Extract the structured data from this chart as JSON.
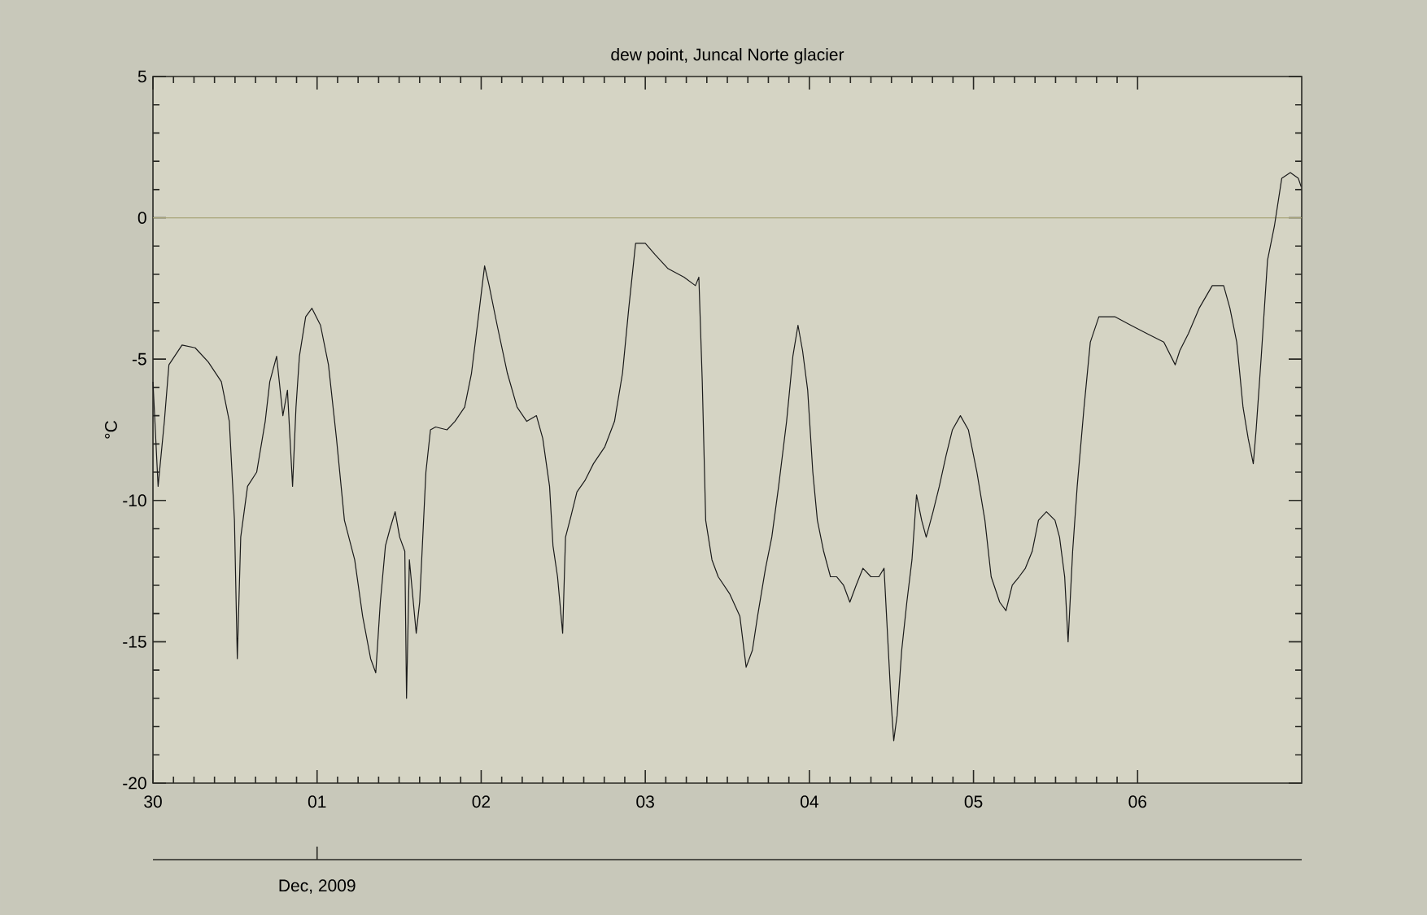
{
  "chart_data": {
    "type": "line",
    "title": "dew point, Juncal Norte glacier",
    "ylabel": "°C",
    "xlim": [
      "2009-11-30",
      "2009-12-07"
    ],
    "xticks": [
      {
        "value": "2009-11-30",
        "label": "30"
      },
      {
        "value": "2009-12-01",
        "label": "01"
      },
      {
        "value": "2009-12-02",
        "label": "02"
      },
      {
        "value": "2009-12-03",
        "label": "03"
      },
      {
        "value": "2009-12-04",
        "label": "04"
      },
      {
        "value": "2009-12-05",
        "label": "05"
      },
      {
        "value": "2009-12-06",
        "label": "06"
      }
    ],
    "ylim": [
      -20,
      5
    ],
    "yticks": [
      -20,
      -15,
      -10,
      -5,
      0,
      5
    ],
    "annotations": [
      "Dec, 2009"
    ],
    "ref_lines": [
      {
        "axis": "y",
        "value": 0,
        "color": "#a8a478"
      }
    ],
    "line_style": "solid",
    "series": [
      {
        "color": "#1a1a1a",
        "x": [
          "2009-11-30T00:00",
          "2009-11-30T00:45",
          "2009-11-30T01:40",
          "2009-11-30T02:20",
          "2009-11-30T04:15",
          "2009-11-30T06:10",
          "2009-11-30T08:05",
          "2009-11-30T10:00",
          "2009-11-30T11:10",
          "2009-11-30T11:55",
          "2009-11-30T12:20",
          "2009-11-30T12:50",
          "2009-11-30T13:50",
          "2009-11-30T15:10",
          "2009-11-30T16:25",
          "2009-11-30T17:05",
          "2009-11-30T18:05",
          "2009-11-30T19:00",
          "2009-11-30T19:40",
          "2009-11-30T20:25",
          "2009-11-30T20:55",
          "2009-11-30T21:25",
          "2009-11-30T22:20",
          "2009-11-30T23:15",
          "2009-12-01T00:30",
          "2009-12-01T01:40",
          "2009-12-01T02:50",
          "2009-12-01T04:00",
          "2009-12-01T05:30",
          "2009-12-01T06:40",
          "2009-12-01T07:50",
          "2009-12-01T08:35",
          "2009-12-01T09:15",
          "2009-12-01T10:00",
          "2009-12-01T10:40",
          "2009-12-01T11:25",
          "2009-12-01T12:05",
          "2009-12-01T12:50",
          "2009-12-01T13:05",
          "2009-12-01T13:30",
          "2009-12-01T14:30",
          "2009-12-01T15:00",
          "2009-12-01T15:55",
          "2009-12-01T16:35",
          "2009-12-01T17:20",
          "2009-12-01T19:00",
          "2009-12-01T20:10",
          "2009-12-01T21:35",
          "2009-12-01T22:35",
          "2009-12-01T23:45",
          "2009-12-02T00:30",
          "2009-12-02T01:10",
          "2009-12-02T02:20",
          "2009-12-02T03:50",
          "2009-12-02T05:15",
          "2009-12-02T06:40",
          "2009-12-02T08:05",
          "2009-12-02T09:00",
          "2009-12-02T10:00",
          "2009-12-02T10:30",
          "2009-12-02T11:10",
          "2009-12-02T11:55",
          "2009-12-02T12:20",
          "2009-12-02T13:05",
          "2009-12-02T14:00",
          "2009-12-02T15:10",
          "2009-12-02T16:25",
          "2009-12-02T18:05",
          "2009-12-02T19:30",
          "2009-12-02T20:40",
          "2009-12-02T21:35",
          "2009-12-02T22:35",
          "2009-12-03T00:00",
          "2009-12-03T01:25",
          "2009-12-03T03:20",
          "2009-12-03T05:40",
          "2009-12-03T07:20",
          "2009-12-03T07:50",
          "2009-12-03T08:20",
          "2009-12-03T08:50",
          "2009-12-03T09:45",
          "2009-12-03T10:40",
          "2009-12-03T12:20",
          "2009-12-03T13:50",
          "2009-12-03T14:45",
          "2009-12-03T15:40",
          "2009-12-03T16:25",
          "2009-12-03T17:35",
          "2009-12-03T18:30",
          "2009-12-03T19:30",
          "2009-12-03T20:40",
          "2009-12-03T21:35",
          "2009-12-03T22:20",
          "2009-12-03T23:00",
          "2009-12-03T23:45",
          "2009-12-04T00:30",
          "2009-12-04T01:10",
          "2009-12-04T02:05",
          "2009-12-04T03:05",
          "2009-12-04T04:00",
          "2009-12-04T05:00",
          "2009-12-04T05:55",
          "2009-12-04T06:50",
          "2009-12-04T07:50",
          "2009-12-04T09:00",
          "2009-12-04T10:10",
          "2009-12-04T10:55",
          "2009-12-04T11:25",
          "2009-12-04T11:55",
          "2009-12-04T12:20",
          "2009-12-04T12:50",
          "2009-12-04T13:30",
          "2009-12-04T14:15",
          "2009-12-04T15:00",
          "2009-12-04T15:40",
          "2009-12-04T16:25",
          "2009-12-04T17:05",
          "2009-12-04T18:05",
          "2009-12-04T19:00",
          "2009-12-04T20:00",
          "2009-12-04T20:55",
          "2009-12-04T22:05",
          "2009-12-04T23:15",
          "2009-12-05T00:30",
          "2009-12-05T01:40",
          "2009-12-05T02:35",
          "2009-12-05T03:50",
          "2009-12-05T04:45",
          "2009-12-05T05:40",
          "2009-12-05T06:40",
          "2009-12-05T07:35",
          "2009-12-05T08:35",
          "2009-12-05T09:30",
          "2009-12-05T10:40",
          "2009-12-05T11:55",
          "2009-12-05T12:35",
          "2009-12-05T13:20",
          "2009-12-05T13:50",
          "2009-12-05T14:30",
          "2009-12-05T15:10",
          "2009-12-05T16:10",
          "2009-12-05T17:05",
          "2009-12-05T18:20",
          "2009-12-05T20:40",
          "2009-12-05T23:00",
          "2009-12-06T01:25",
          "2009-12-06T03:50",
          "2009-12-06T05:30",
          "2009-12-06T06:10",
          "2009-12-06T07:25",
          "2009-12-06T09:00",
          "2009-12-06T10:55",
          "2009-12-06T12:35",
          "2009-12-06T13:30",
          "2009-12-06T14:30",
          "2009-12-06T15:25",
          "2009-12-06T16:10",
          "2009-12-06T16:55",
          "2009-12-06T17:20",
          "2009-12-06T18:05",
          "2009-12-06T19:00",
          "2009-12-06T20:00",
          "2009-12-06T21:05",
          "2009-12-06T22:20",
          "2009-12-06T23:30",
          "2009-12-06T23:55"
        ],
        "values": [
          -5.8,
          -9.5,
          -7.2,
          -5.2,
          -4.5,
          -4.6,
          -5.1,
          -5.8,
          -7.2,
          -10.7,
          -15.6,
          -11.3,
          -9.5,
          -9.0,
          -7.2,
          -5.8,
          -4.9,
          -7.0,
          -6.1,
          -9.5,
          -6.7,
          -4.9,
          -3.5,
          -3.2,
          -3.8,
          -5.2,
          -7.8,
          -10.7,
          -12.1,
          -14.1,
          -15.6,
          -16.1,
          -13.6,
          -11.6,
          -11.0,
          -10.4,
          -11.3,
          -11.8,
          -17.0,
          -12.1,
          -14.7,
          -13.6,
          -9.0,
          -7.5,
          -7.4,
          -7.5,
          -7.2,
          -6.7,
          -5.5,
          -3.2,
          -1.7,
          -2.4,
          -3.8,
          -5.5,
          -6.7,
          -7.2,
          -7.0,
          -7.8,
          -9.5,
          -11.6,
          -12.7,
          -14.7,
          -11.3,
          -10.6,
          -9.7,
          -9.3,
          -8.7,
          -8.1,
          -7.2,
          -5.5,
          -3.2,
          -0.9,
          -0.9,
          -1.3,
          -1.8,
          -2.1,
          -2.4,
          -2.1,
          -5.8,
          -10.7,
          -12.1,
          -12.7,
          -13.3,
          -14.1,
          -15.9,
          -15.3,
          -14.1,
          -12.4,
          -11.3,
          -9.5,
          -7.2,
          -4.9,
          -3.8,
          -4.7,
          -6.1,
          -9.0,
          -10.7,
          -11.8,
          -12.7,
          -12.7,
          -13.0,
          -13.6,
          -13.0,
          -12.4,
          -12.7,
          -12.7,
          -12.4,
          -14.7,
          -17.0,
          -18.5,
          -17.6,
          -15.3,
          -13.6,
          -12.1,
          -9.8,
          -10.7,
          -11.3,
          -10.4,
          -9.5,
          -8.4,
          -7.5,
          -7.0,
          -7.5,
          -9.0,
          -10.7,
          -12.7,
          -13.6,
          -13.9,
          -13.0,
          -12.7,
          -12.4,
          -11.8,
          -10.7,
          -10.4,
          -10.7,
          -11.3,
          -12.7,
          -15.0,
          -11.8,
          -9.5,
          -6.7,
          -4.4,
          -3.5,
          -3.5,
          -3.8,
          -4.1,
          -4.4,
          -5.2,
          -4.7,
          -4.1,
          -3.2,
          -2.4,
          -2.4,
          -3.2,
          -4.4,
          -6.7,
          -7.8,
          -8.7,
          -7.5,
          -4.9,
          -1.5,
          -0.3,
          1.4,
          1.6,
          1.4,
          1.1
        ]
      }
    ]
  }
}
